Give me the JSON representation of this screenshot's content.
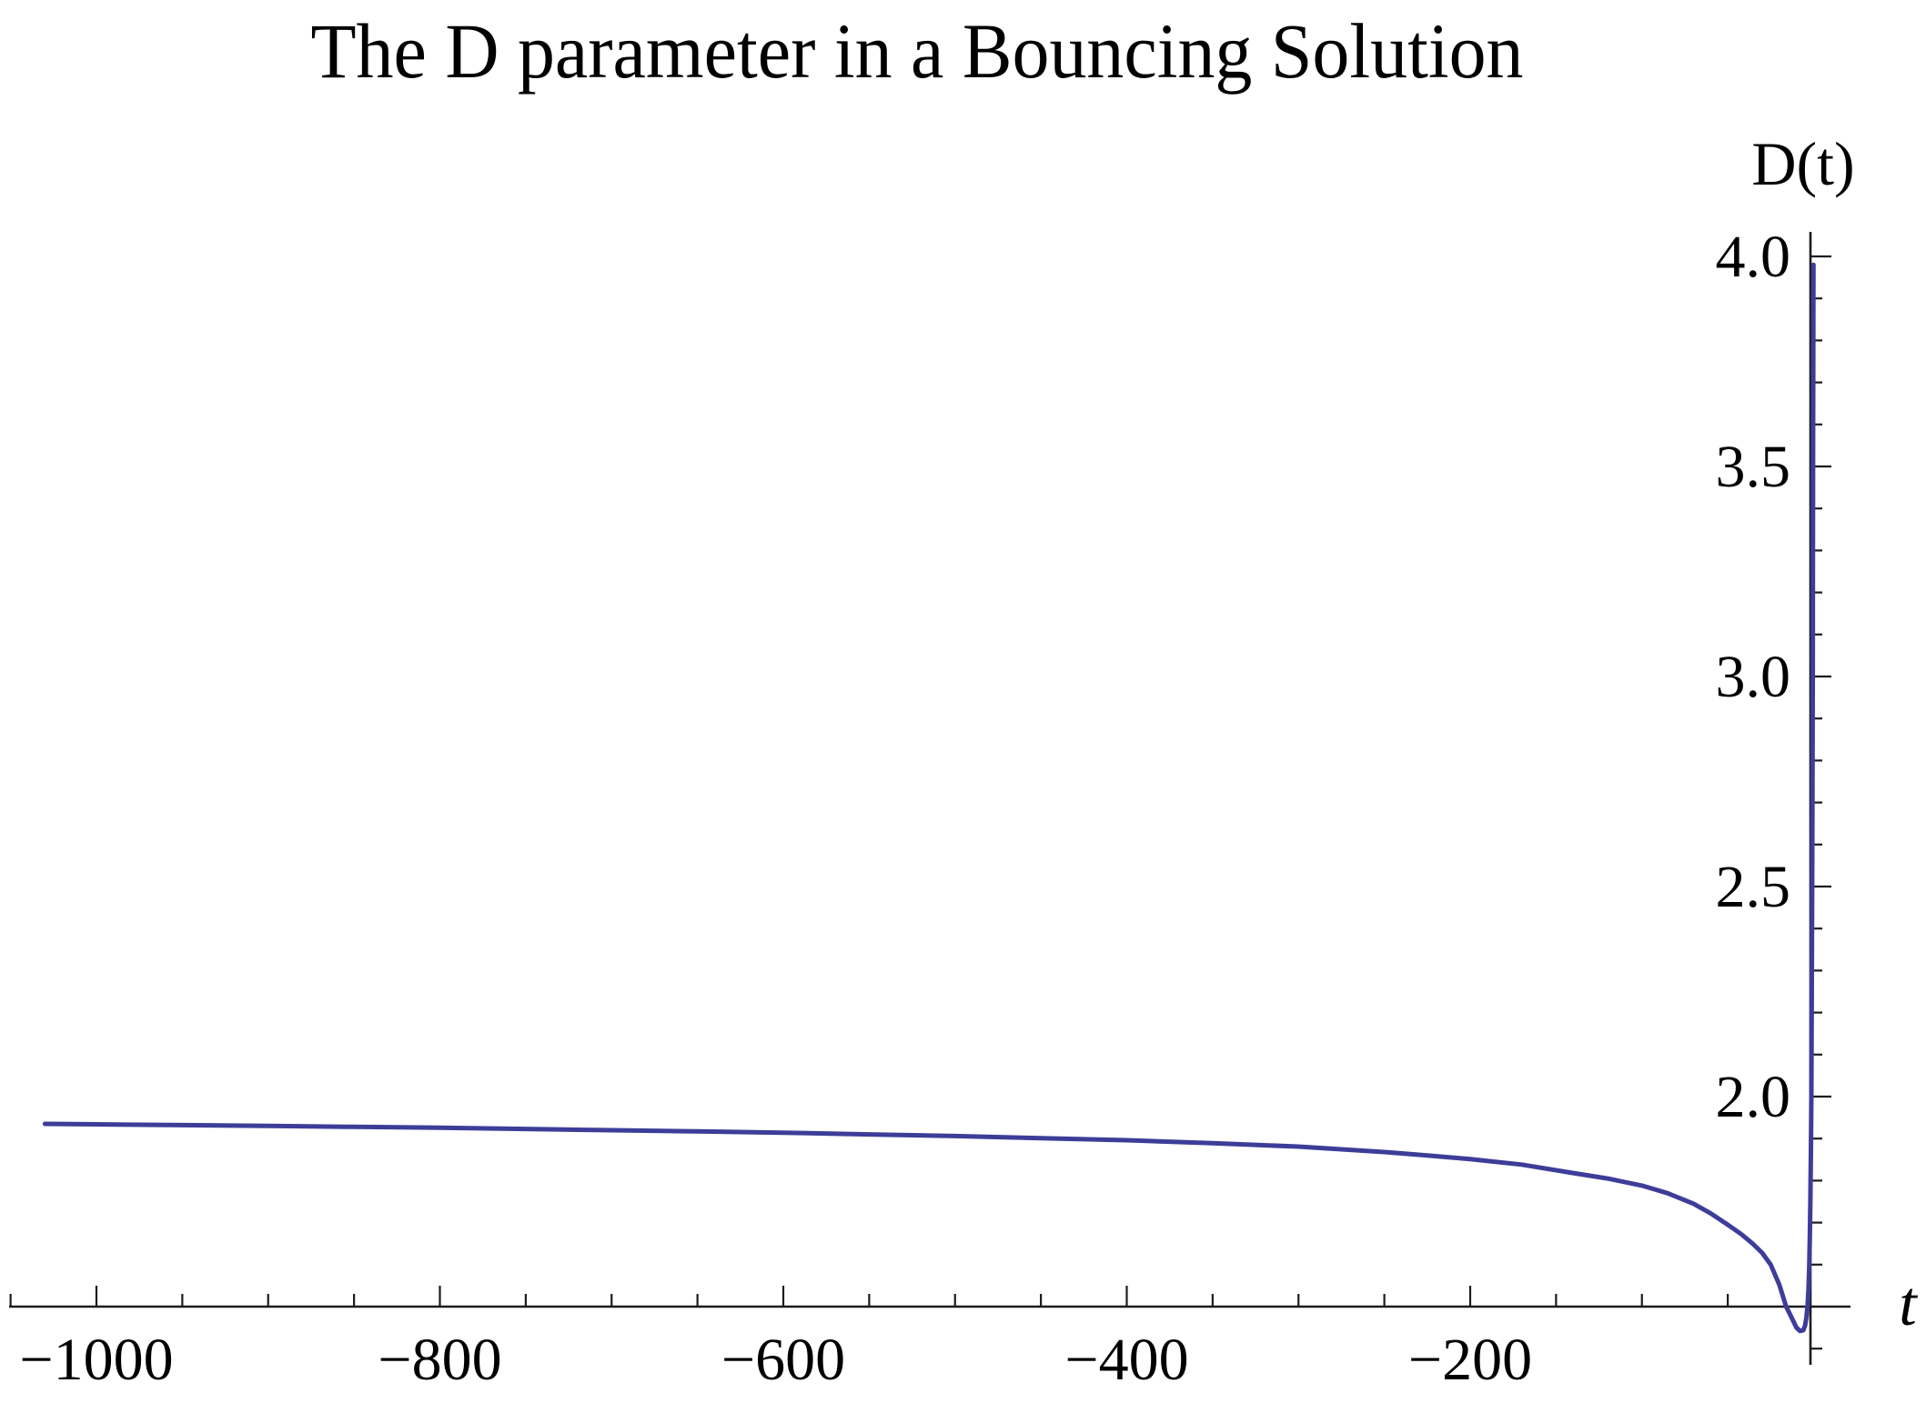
{
  "title": "The D parameter in a Bouncing Solution",
  "axes": {
    "x_label": "t",
    "y_label": "D(t)",
    "x_tick_values": [
      -1000,
      -800,
      -600,
      -400,
      -200
    ],
    "x_tick_labels": [
      "−1000",
      "−800",
      "−600",
      "−400",
      "−200"
    ],
    "x_minor_step": 50,
    "y_tick_values": [
      2.0,
      2.5,
      3.0,
      3.5,
      4.0
    ],
    "y_tick_labels": [
      "2.0",
      "2.5",
      "3.0",
      "3.5",
      "4.0"
    ],
    "y_minor_step": 0.1
  },
  "colors": {
    "curve": "#3D3D99",
    "axis": "#1c1c1c",
    "text": "#000000",
    "background": "#ffffff"
  },
  "chart_data": {
    "type": "line",
    "title": "The D parameter in a Bouncing Solution",
    "xlabel": "t",
    "ylabel": "D(t)",
    "xlim": [
      -1051,
      21
    ],
    "ylim": [
      1.36,
      4.06
    ],
    "axes_cross_at": {
      "x": 0,
      "y": 1.5
    },
    "grid": false,
    "legend": false,
    "x_major_ticks": [
      -1000,
      -800,
      -600,
      -400,
      -200
    ],
    "x_minor_tick_step": 50,
    "y_major_ticks": [
      2.0,
      2.5,
      3.0,
      3.5,
      4.0
    ],
    "y_minor_tick_step": 0.1,
    "series": [
      {
        "name": "D(t)",
        "color": "#3D3D99",
        "points": [
          [
            -1030,
            1.935
          ],
          [
            -1000,
            1.934
          ],
          [
            -950,
            1.932
          ],
          [
            -900,
            1.93
          ],
          [
            -850,
            1.928
          ],
          [
            -800,
            1.926
          ],
          [
            -750,
            1.923
          ],
          [
            -700,
            1.92
          ],
          [
            -650,
            1.917
          ],
          [
            -600,
            1.914
          ],
          [
            -550,
            1.91
          ],
          [
            -500,
            1.906
          ],
          [
            -450,
            1.901
          ],
          [
            -400,
            1.896
          ],
          [
            -350,
            1.889
          ],
          [
            -300,
            1.881
          ],
          [
            -250,
            1.868
          ],
          [
            -225,
            1.86
          ],
          [
            -200,
            1.851
          ],
          [
            -170,
            1.838
          ],
          [
            -140,
            1.818
          ],
          [
            -120,
            1.805
          ],
          [
            -100,
            1.788
          ],
          [
            -85,
            1.77
          ],
          [
            -70,
            1.745
          ],
          [
            -60,
            1.722
          ],
          [
            -50,
            1.695
          ],
          [
            -42,
            1.672
          ],
          [
            -35,
            1.648
          ],
          [
            -30,
            1.628
          ],
          [
            -25,
            1.6
          ],
          [
            -20,
            1.552
          ],
          [
            -16,
            1.5
          ],
          [
            -13,
            1.475
          ],
          [
            -10,
            1.45
          ],
          [
            -8,
            1.442
          ],
          [
            -6,
            1.444
          ],
          [
            -5,
            1.455
          ],
          [
            -4.2,
            1.475
          ],
          [
            -3.5,
            1.505
          ],
          [
            -3,
            1.54
          ],
          [
            -2.6,
            1.59
          ],
          [
            -2.2,
            1.665
          ],
          [
            -1.9,
            1.75
          ],
          [
            -1.6,
            1.87
          ],
          [
            -1.35,
            2.0
          ],
          [
            -1.1,
            2.22
          ],
          [
            -0.9,
            2.45
          ],
          [
            -0.75,
            2.64
          ],
          [
            -0.6,
            2.87
          ],
          [
            -0.5,
            3.06
          ],
          [
            -0.4,
            3.28
          ],
          [
            -0.3,
            3.56
          ],
          [
            -0.22,
            3.76
          ],
          [
            -0.16,
            3.9
          ],
          [
            -0.12,
            3.98
          ]
        ]
      }
    ]
  }
}
